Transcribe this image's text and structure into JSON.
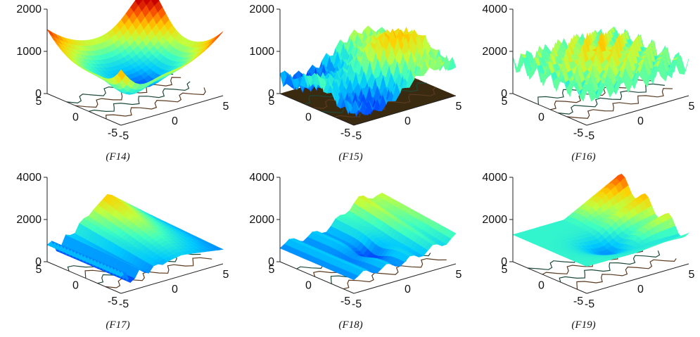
{
  "chart_data": [
    {
      "type": "surface",
      "caption": "(F14)",
      "zlim": [
        0,
        2000
      ],
      "zticks": [
        "0",
        "1000",
        "2000"
      ],
      "yticks": [
        "5",
        "0",
        "-5"
      ],
      "xticks": [
        "-5",
        "0",
        "5"
      ],
      "contour_on_floor": true
    },
    {
      "type": "surface",
      "caption": "(F15)",
      "zlim": [
        0,
        2000
      ],
      "zticks": [
        "0",
        "1000",
        "2000"
      ],
      "yticks": [
        "5",
        "0",
        "-5"
      ],
      "xticks": [
        "-5",
        "0",
        "5"
      ],
      "contour_on_floor": true
    },
    {
      "type": "surface",
      "caption": "(F16)",
      "zlim": [
        0,
        4000
      ],
      "zticks": [
        "0",
        "2000",
        "4000"
      ],
      "yticks": [
        "5",
        "0",
        "-5"
      ],
      "xticks": [
        "-5",
        "0",
        "5"
      ],
      "contour_on_floor": true
    },
    {
      "type": "surface",
      "caption": "(F17)",
      "zlim": [
        0,
        4000
      ],
      "zticks": [
        "0",
        "2000",
        "4000"
      ],
      "yticks": [
        "5",
        "0",
        "-5"
      ],
      "xticks": [
        "-5",
        "0",
        "5"
      ],
      "contour_on_floor": true
    },
    {
      "type": "surface",
      "caption": "(F18)",
      "zlim": [
        0,
        4000
      ],
      "zticks": [
        "0",
        "2000",
        "4000"
      ],
      "yticks": [
        "5",
        "0",
        "-5"
      ],
      "xticks": [
        "-5",
        "0",
        "5"
      ],
      "contour_on_floor": true
    },
    {
      "type": "surface",
      "caption": "(F19)",
      "zlim": [
        0,
        4000
      ],
      "zticks": [
        "0",
        "2000",
        "4000"
      ],
      "yticks": [
        "5",
        "0",
        "-5"
      ],
      "xticks": [
        "-5",
        "0",
        "5"
      ],
      "contour_on_floor": true
    }
  ],
  "colormap": [
    "#0000c8",
    "#0050ff",
    "#00c8ff",
    "#40ffc0",
    "#c0ff40",
    "#ffd000",
    "#ff6000",
    "#c80000"
  ]
}
